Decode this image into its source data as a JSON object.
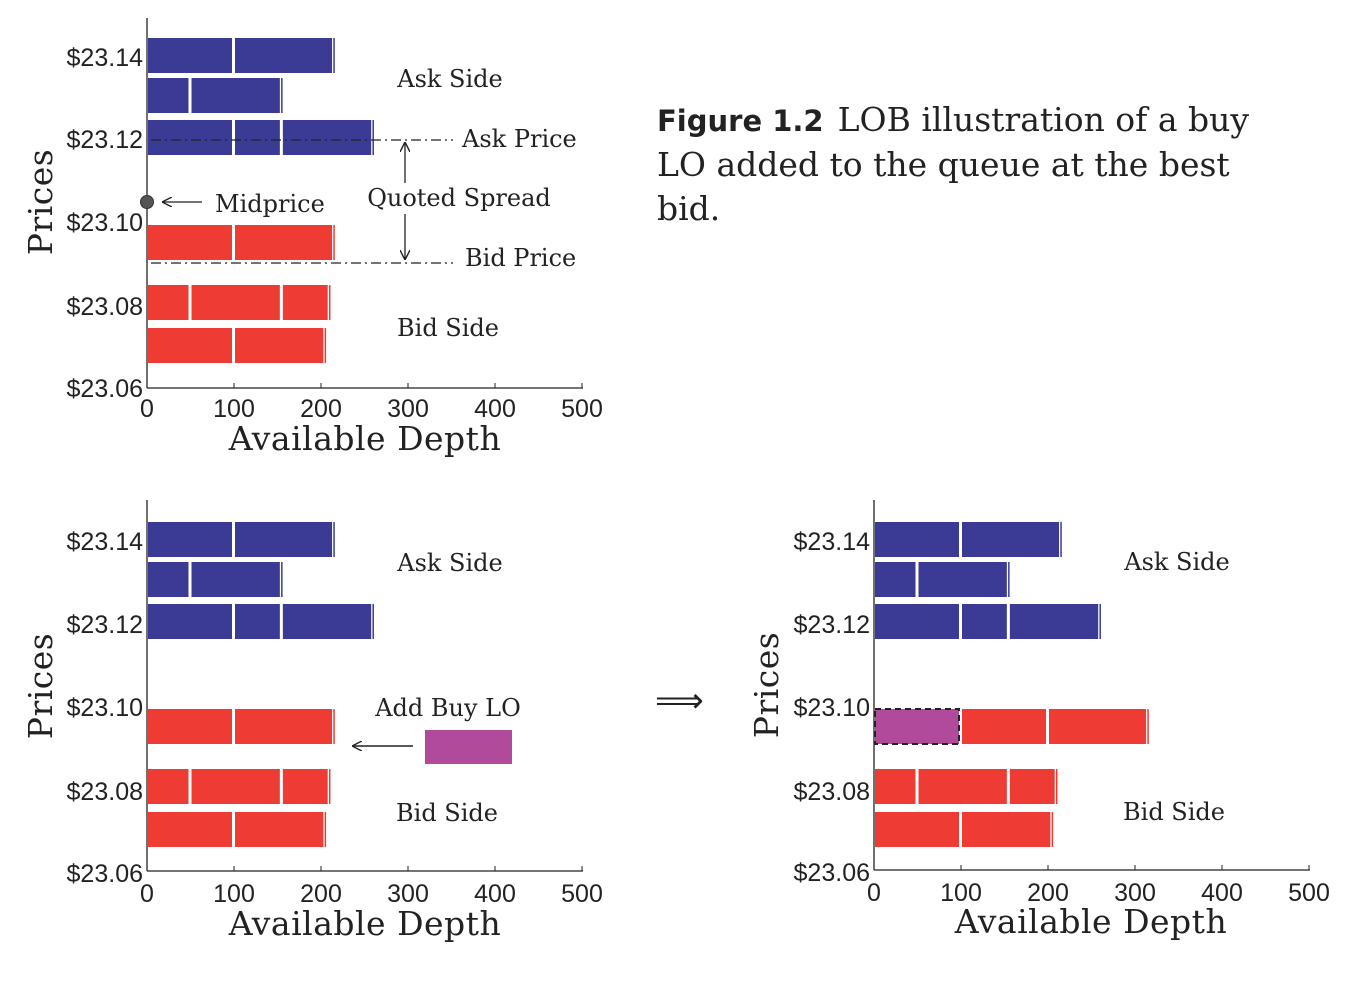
{
  "caption": {
    "number": "Figure 1.2",
    "text": "LOB illustration of a buy LO added to the queue at the best bid."
  },
  "transition_arrow": "⟹",
  "colors": {
    "ask": "#3b3b96",
    "bid": "#ee3c34",
    "new_order": "#b24a9c"
  },
  "chart_data": [
    {
      "type": "bar",
      "orientation": "horizontal-stacked",
      "xlabel": "Available Depth",
      "ylabel": "Prices",
      "xlim": [
        0,
        500
      ],
      "x_ticks": [
        "0",
        "100",
        "200",
        "300",
        "400",
        "500"
      ],
      "y_ticks": [
        "$23.14",
        "$23.12",
        "$23.10",
        "$23.08",
        "$23.06"
      ],
      "rows": [
        {
          "price": 23.14,
          "side": "ask",
          "orders": [
            100,
            115
          ]
        },
        {
          "price": 23.13,
          "side": "ask",
          "orders": [
            50,
            105
          ]
        },
        {
          "price": 23.12,
          "side": "ask",
          "orders": [
            100,
            55,
            105
          ]
        },
        {
          "price": 23.09,
          "side": "bid",
          "orders": [
            100,
            115
          ]
        },
        {
          "price": 23.08,
          "side": "bid",
          "orders": [
            50,
            105,
            55
          ]
        },
        {
          "price": 23.07,
          "side": "bid",
          "orders": [
            100,
            105
          ]
        }
      ],
      "annotations": {
        "ask_side": "Ask Side",
        "bid_side": "Bid Side",
        "ask_price": "Ask Price",
        "bid_price": "Bid Price",
        "quoted_spread": "Quoted Spread",
        "midprice": "Midprice"
      }
    },
    {
      "type": "bar",
      "orientation": "horizontal-stacked",
      "xlabel": "Available Depth",
      "ylabel": "Prices",
      "xlim": [
        0,
        500
      ],
      "x_ticks": [
        "0",
        "100",
        "200",
        "300",
        "400",
        "500"
      ],
      "y_ticks": [
        "$23.14",
        "$23.12",
        "$23.10",
        "$23.08",
        "$23.06"
      ],
      "rows": [
        {
          "price": 23.14,
          "side": "ask",
          "orders": [
            100,
            115
          ]
        },
        {
          "price": 23.13,
          "side": "ask",
          "orders": [
            50,
            105
          ]
        },
        {
          "price": 23.12,
          "side": "ask",
          "orders": [
            100,
            55,
            105
          ]
        },
        {
          "price": 23.09,
          "side": "bid",
          "orders": [
            100,
            115
          ]
        },
        {
          "price": 23.08,
          "side": "bid",
          "orders": [
            50,
            105,
            55
          ]
        },
        {
          "price": 23.07,
          "side": "bid",
          "orders": [
            100,
            105
          ]
        }
      ],
      "new_order": {
        "price": 23.09,
        "size": 100
      },
      "annotations": {
        "ask_side": "Ask Side",
        "bid_side": "Bid Side",
        "add_order": "Add Buy LO"
      }
    },
    {
      "type": "bar",
      "orientation": "horizontal-stacked",
      "xlabel": "Available Depth",
      "ylabel": "Prices",
      "xlim": [
        0,
        500
      ],
      "x_ticks": [
        "0",
        "100",
        "200",
        "300",
        "400",
        "500"
      ],
      "y_ticks": [
        "$23.14",
        "$23.12",
        "$23.10",
        "$23.08",
        "$23.06"
      ],
      "rows": [
        {
          "price": 23.14,
          "side": "ask",
          "orders": [
            100,
            115
          ]
        },
        {
          "price": 23.13,
          "side": "ask",
          "orders": [
            50,
            105
          ]
        },
        {
          "price": 23.12,
          "side": "ask",
          "orders": [
            100,
            55,
            105
          ]
        },
        {
          "price": 23.09,
          "side": "bid",
          "orders": [
            100,
            100,
            115
          ],
          "new_order_index": 0
        },
        {
          "price": 23.08,
          "side": "bid",
          "orders": [
            50,
            105,
            55
          ]
        },
        {
          "price": 23.07,
          "side": "bid",
          "orders": [
            100,
            105
          ]
        }
      ],
      "annotations": {
        "ask_side": "Ask Side",
        "bid_side": "Bid Side"
      }
    }
  ]
}
